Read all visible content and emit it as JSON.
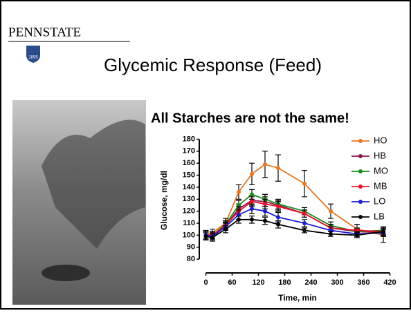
{
  "logo": {
    "name": "PENNSTATE",
    "year": "1855"
  },
  "chart_data": {
    "type": "line",
    "title": "Glycemic Response (Feed)",
    "subtitle": "All Starches are not the same!",
    "x_label": "Time, min",
    "y_label": "Glucose, mg/dl",
    "x": [
      0,
      15,
      45,
      75,
      105,
      135,
      165,
      225,
      285,
      345,
      405
    ],
    "xlim": [
      -15,
      435
    ],
    "xticks": [
      0,
      60,
      120,
      180,
      240,
      300,
      360,
      420
    ],
    "ylim": [
      72,
      182
    ],
    "yticks": [
      80,
      90,
      100,
      110,
      120,
      130,
      140,
      150,
      160,
      170,
      180
    ],
    "legend": "right",
    "error_color": "#000000",
    "series": [
      {
        "name": "HO",
        "color": "#e87722",
        "values": [
          100,
          102,
          110,
          136,
          151,
          159,
          156,
          143,
          120,
          105,
          100
        ],
        "errors": [
          4,
          3,
          4,
          6,
          9,
          11,
          11,
          11,
          6,
          4,
          6
        ]
      },
      {
        "name": "HB",
        "color": "#8b1a4a",
        "values": [
          100,
          100,
          108,
          122,
          129,
          128,
          125,
          118,
          106,
          103,
          102
        ],
        "errors": [
          3,
          3,
          3,
          4,
          4,
          4,
          4,
          3,
          3,
          2,
          3
        ]
      },
      {
        "name": "MO",
        "color": "#1a8a1a",
        "values": [
          100,
          100,
          109,
          125,
          134,
          130,
          126,
          120,
          108,
          103,
          104
        ],
        "errors": [
          3,
          3,
          3,
          4,
          4,
          4,
          4,
          3,
          3,
          2,
          3
        ]
      },
      {
        "name": "MB",
        "color": "#e8112d",
        "values": [
          100,
          100,
          108,
          120,
          128,
          126,
          124,
          118,
          106,
          104,
          103
        ],
        "errors": [
          3,
          3,
          3,
          4,
          4,
          4,
          4,
          3,
          3,
          2,
          3
        ]
      },
      {
        "name": "LO",
        "color": "#1c1cd6",
        "values": [
          100,
          99,
          107,
          117,
          122,
          120,
          115,
          110,
          104,
          101,
          102
        ],
        "errors": [
          3,
          3,
          3,
          4,
          4,
          4,
          4,
          3,
          3,
          2,
          3
        ]
      },
      {
        "name": "LB",
        "color": "#000000",
        "values": [
          99,
          98,
          105,
          113,
          113,
          112,
          109,
          104,
          101,
          100,
          103
        ],
        "errors": [
          3,
          3,
          3,
          3,
          3,
          3,
          3,
          2,
          2,
          2,
          3
        ]
      }
    ]
  }
}
